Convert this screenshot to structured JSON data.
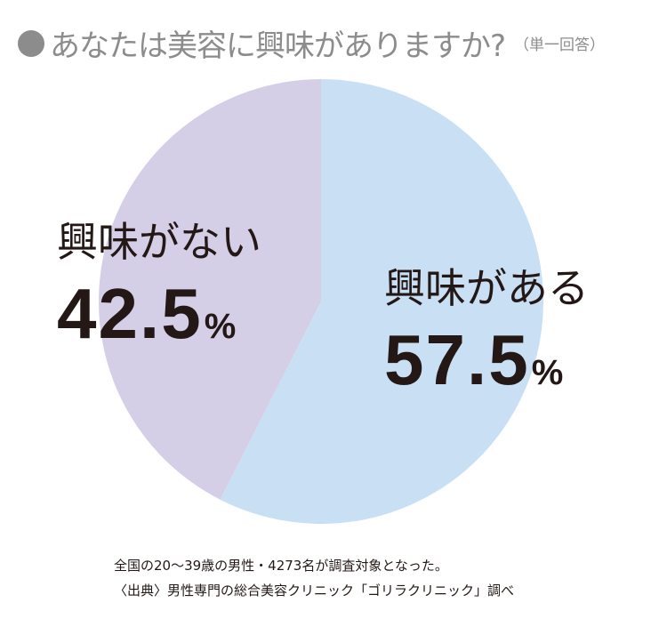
{
  "title": "あなたは美容に興味がありますか?",
  "title_note": "（単一回答）",
  "chart_data": {
    "type": "pie",
    "title": "あなたは美容に興味がありますか?",
    "slices": [
      {
        "label": "興味がある",
        "value": 57.5,
        "display": "57.5",
        "unit": "%",
        "color": "#c9e0f4"
      },
      {
        "label": "興味がない",
        "value": 42.5,
        "display": "42.5",
        "unit": "%",
        "color": "#d4cfe6"
      }
    ],
    "start": "12 o'clock",
    "direction": "clockwise"
  },
  "notes": [
    "全国の20〜39歳の男性・4273名が調査対象となった。",
    "〈出典〉男性専門の総合美容クリニック「ゴリラクリニック」調べ"
  ],
  "colors": {
    "title_gray": "#8c8c8c",
    "text_dark": "#231815",
    "background": "#ffffff"
  }
}
